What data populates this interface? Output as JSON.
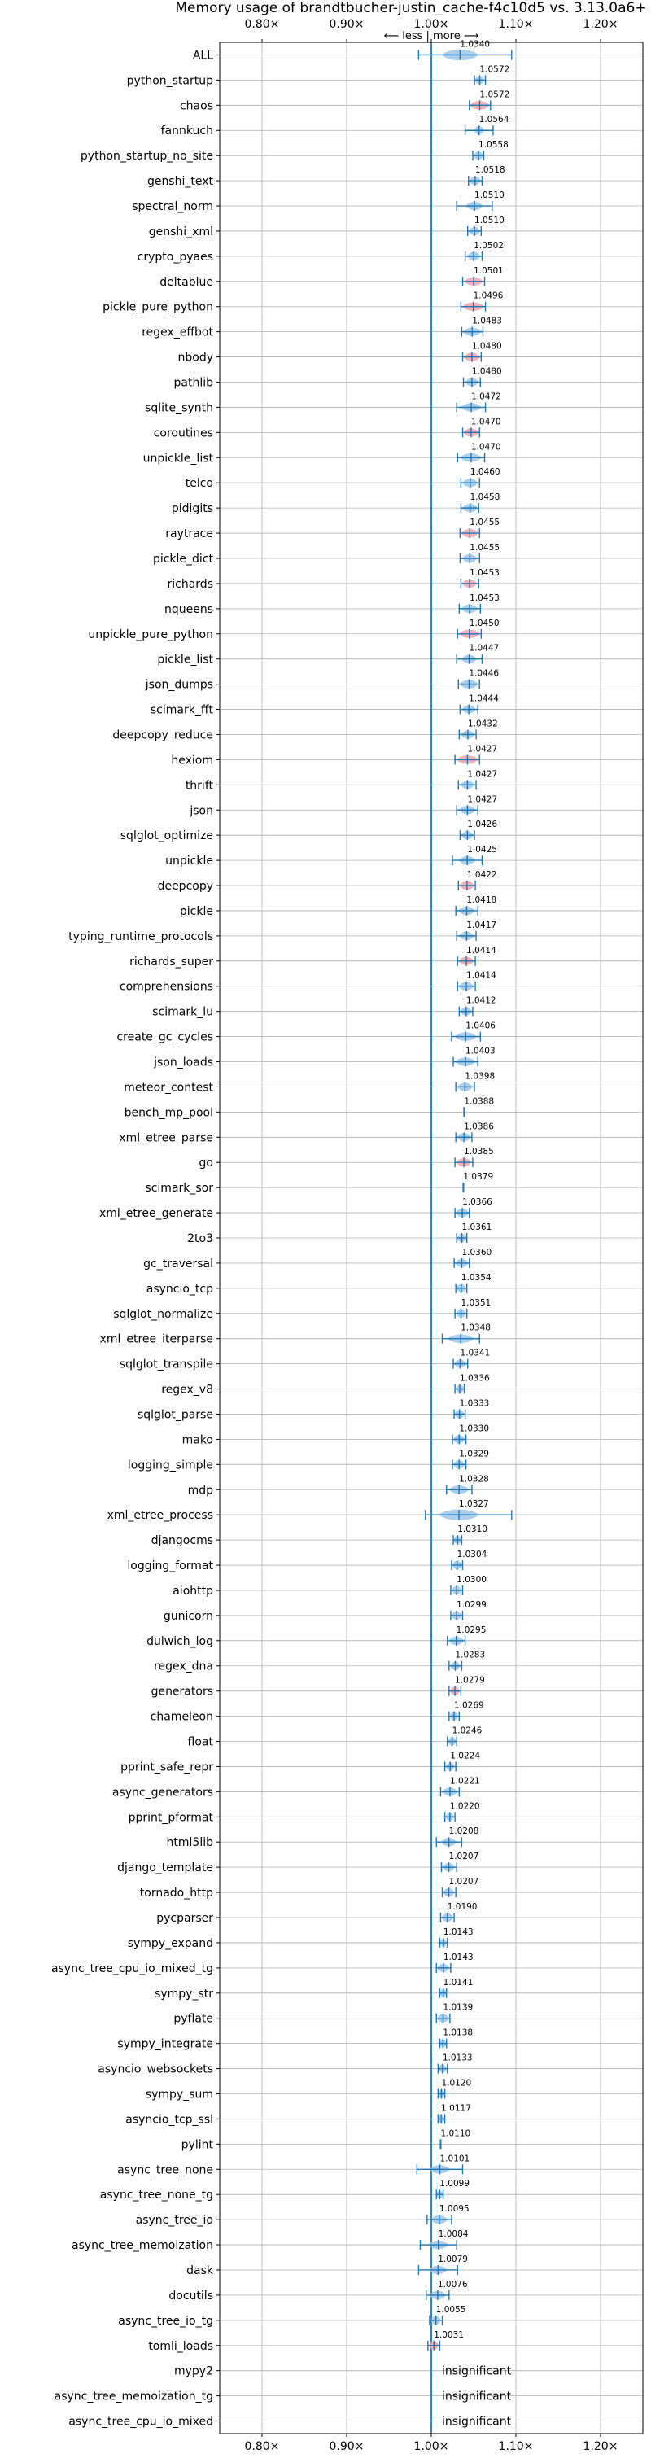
{
  "chart_data": {
    "type": "violin",
    "title": "Memory usage of brandtbucher-justin_cache-f4c10d5 vs. 3.13.0a6+",
    "direction_note": "⟵ less | more ⟶",
    "xlim": [
      0.75,
      1.25
    ],
    "x_ticks": [
      0.8,
      0.9,
      1.0,
      1.1,
      1.2
    ],
    "x_tick_labels": [
      "0.80×",
      "0.90×",
      "1.00×",
      "1.10×",
      "1.20×"
    ],
    "reference_line": 1.0,
    "grid": true,
    "colors": {
      "axis_line": "#1f77b4",
      "violin_normal": "#9ec6e8",
      "violin_highlight": "#f2a3ad",
      "errorbar": "#1f77b4",
      "grid": "#b0b0b0"
    },
    "insignificant_label": "insignificant",
    "benchmarks": [
      {
        "name": "ALL",
        "value": 1.034,
        "label": "1.0340",
        "lo": 0.985,
        "hi": 1.095,
        "spread": 0.022,
        "highlight": false,
        "wide": true
      },
      {
        "name": "python_startup",
        "value": 1.0572,
        "label": "1.0572",
        "lo": 1.051,
        "hi": 1.064,
        "spread": 0.006,
        "highlight": false
      },
      {
        "name": "chaos",
        "value": 1.0572,
        "label": "1.0572",
        "lo": 1.045,
        "hi": 1.07,
        "spread": 0.012,
        "highlight": true
      },
      {
        "name": "fannkuch",
        "value": 1.0564,
        "label": "1.0564",
        "lo": 1.04,
        "hi": 1.073,
        "spread": 0.006,
        "highlight": false
      },
      {
        "name": "python_startup_no_site",
        "value": 1.0558,
        "label": "1.0558",
        "lo": 1.049,
        "hi": 1.062,
        "spread": 0.006,
        "highlight": false
      },
      {
        "name": "genshi_text",
        "value": 1.0518,
        "label": "1.0518",
        "lo": 1.044,
        "hi": 1.06,
        "spread": 0.007,
        "highlight": false
      },
      {
        "name": "spectral_norm",
        "value": 1.051,
        "label": "1.0510",
        "lo": 1.03,
        "hi": 1.072,
        "spread": 0.01,
        "highlight": false
      },
      {
        "name": "genshi_xml",
        "value": 1.051,
        "label": "1.0510",
        "lo": 1.043,
        "hi": 1.059,
        "spread": 0.007,
        "highlight": false
      },
      {
        "name": "crypto_pyaes",
        "value": 1.0502,
        "label": "1.0502",
        "lo": 1.04,
        "hi": 1.06,
        "spread": 0.008,
        "highlight": false
      },
      {
        "name": "deltablue",
        "value": 1.0501,
        "label": "1.0501",
        "lo": 1.037,
        "hi": 1.063,
        "spread": 0.011,
        "highlight": true
      },
      {
        "name": "pickle_pure_python",
        "value": 1.0496,
        "label": "1.0496",
        "lo": 1.035,
        "hi": 1.064,
        "spread": 0.013,
        "highlight": true
      },
      {
        "name": "regex_effbot",
        "value": 1.0483,
        "label": "1.0483",
        "lo": 1.036,
        "hi": 1.061,
        "spread": 0.011,
        "highlight": false
      },
      {
        "name": "nbody",
        "value": 1.048,
        "label": "1.0480",
        "lo": 1.037,
        "hi": 1.059,
        "spread": 0.01,
        "highlight": true
      },
      {
        "name": "pathlib",
        "value": 1.048,
        "label": "1.0480",
        "lo": 1.038,
        "hi": 1.058,
        "spread": 0.008,
        "highlight": false
      },
      {
        "name": "sqlite_synth",
        "value": 1.0472,
        "label": "1.0472",
        "lo": 1.03,
        "hi": 1.064,
        "spread": 0.012,
        "highlight": false
      },
      {
        "name": "coroutines",
        "value": 1.047,
        "label": "1.0470",
        "lo": 1.037,
        "hi": 1.057,
        "spread": 0.009,
        "highlight": true
      },
      {
        "name": "unpickle_list",
        "value": 1.047,
        "label": "1.0470",
        "lo": 1.031,
        "hi": 1.063,
        "spread": 0.013,
        "highlight": false
      },
      {
        "name": "telco",
        "value": 1.046,
        "label": "1.0460",
        "lo": 1.035,
        "hi": 1.057,
        "spread": 0.009,
        "highlight": false
      },
      {
        "name": "pidigits",
        "value": 1.0458,
        "label": "1.0458",
        "lo": 1.035,
        "hi": 1.056,
        "spread": 0.009,
        "highlight": false
      },
      {
        "name": "raytrace",
        "value": 1.0455,
        "label": "1.0455",
        "lo": 1.034,
        "hi": 1.057,
        "spread": 0.01,
        "highlight": true
      },
      {
        "name": "pickle_dict",
        "value": 1.0455,
        "label": "1.0455",
        "lo": 1.034,
        "hi": 1.057,
        "spread": 0.009,
        "highlight": false
      },
      {
        "name": "richards",
        "value": 1.0453,
        "label": "1.0453",
        "lo": 1.035,
        "hi": 1.056,
        "spread": 0.009,
        "highlight": true
      },
      {
        "name": "nqueens",
        "value": 1.0453,
        "label": "1.0453",
        "lo": 1.033,
        "hi": 1.058,
        "spread": 0.01,
        "highlight": false
      },
      {
        "name": "unpickle_pure_python",
        "value": 1.045,
        "label": "1.0450",
        "lo": 1.031,
        "hi": 1.059,
        "spread": 0.012,
        "highlight": true
      },
      {
        "name": "pickle_list",
        "value": 1.0447,
        "label": "1.0447",
        "lo": 1.03,
        "hi": 1.06,
        "spread": 0.009,
        "highlight": false
      },
      {
        "name": "json_dumps",
        "value": 1.0446,
        "label": "1.0446",
        "lo": 1.032,
        "hi": 1.057,
        "spread": 0.011,
        "highlight": false
      },
      {
        "name": "scimark_fft",
        "value": 1.0444,
        "label": "1.0444",
        "lo": 1.034,
        "hi": 1.055,
        "spread": 0.008,
        "highlight": false
      },
      {
        "name": "deepcopy_reduce",
        "value": 1.0432,
        "label": "1.0432",
        "lo": 1.033,
        "hi": 1.053,
        "spread": 0.008,
        "highlight": false
      },
      {
        "name": "hexiom",
        "value": 1.0427,
        "label": "1.0427",
        "lo": 1.028,
        "hi": 1.057,
        "spread": 0.013,
        "highlight": true
      },
      {
        "name": "thrift",
        "value": 1.0427,
        "label": "1.0427",
        "lo": 1.032,
        "hi": 1.053,
        "spread": 0.008,
        "highlight": false
      },
      {
        "name": "json",
        "value": 1.0427,
        "label": "1.0427",
        "lo": 1.03,
        "hi": 1.055,
        "spread": 0.01,
        "highlight": false
      },
      {
        "name": "sqlglot_optimize",
        "value": 1.0426,
        "label": "1.0426",
        "lo": 1.034,
        "hi": 1.051,
        "spread": 0.007,
        "highlight": false
      },
      {
        "name": "unpickle",
        "value": 1.0425,
        "label": "1.0425",
        "lo": 1.025,
        "hi": 1.06,
        "spread": 0.01,
        "highlight": false
      },
      {
        "name": "deepcopy",
        "value": 1.0422,
        "label": "1.0422",
        "lo": 1.032,
        "hi": 1.052,
        "spread": 0.009,
        "highlight": true
      },
      {
        "name": "pickle",
        "value": 1.0418,
        "label": "1.0418",
        "lo": 1.029,
        "hi": 1.055,
        "spread": 0.01,
        "highlight": false
      },
      {
        "name": "typing_runtime_protocols",
        "value": 1.0417,
        "label": "1.0417",
        "lo": 1.03,
        "hi": 1.053,
        "spread": 0.009,
        "highlight": false
      },
      {
        "name": "richards_super",
        "value": 1.0414,
        "label": "1.0414",
        "lo": 1.031,
        "hi": 1.052,
        "spread": 0.009,
        "highlight": true
      },
      {
        "name": "comprehensions",
        "value": 1.0414,
        "label": "1.0414",
        "lo": 1.031,
        "hi": 1.052,
        "spread": 0.009,
        "highlight": false
      },
      {
        "name": "scimark_lu",
        "value": 1.0412,
        "label": "1.0412",
        "lo": 1.033,
        "hi": 1.049,
        "spread": 0.007,
        "highlight": false
      },
      {
        "name": "create_gc_cycles",
        "value": 1.0406,
        "label": "1.0406",
        "lo": 1.024,
        "hi": 1.058,
        "spread": 0.013,
        "highlight": false
      },
      {
        "name": "json_loads",
        "value": 1.0403,
        "label": "1.0403",
        "lo": 1.026,
        "hi": 1.055,
        "spread": 0.012,
        "highlight": false
      },
      {
        "name": "meteor_contest",
        "value": 1.0398,
        "label": "1.0398",
        "lo": 1.029,
        "hi": 1.051,
        "spread": 0.009,
        "highlight": false
      },
      {
        "name": "bench_mp_pool",
        "value": 1.0388,
        "label": "1.0388",
        "lo": 1.0385,
        "hi": 1.0391,
        "spread": 0.001,
        "highlight": false,
        "bare": true
      },
      {
        "name": "xml_etree_parse",
        "value": 1.0386,
        "label": "1.0386",
        "lo": 1.029,
        "hi": 1.048,
        "spread": 0.008,
        "highlight": false
      },
      {
        "name": "go",
        "value": 1.0385,
        "label": "1.0385",
        "lo": 1.028,
        "hi": 1.049,
        "spread": 0.009,
        "highlight": true
      },
      {
        "name": "scimark_sor",
        "value": 1.0379,
        "label": "1.0379",
        "lo": 1.0376,
        "hi": 1.0382,
        "spread": 0.001,
        "highlight": false,
        "bare": true
      },
      {
        "name": "xml_etree_generate",
        "value": 1.0366,
        "label": "1.0366",
        "lo": 1.028,
        "hi": 1.045,
        "spread": 0.008,
        "highlight": false
      },
      {
        "name": "2to3",
        "value": 1.0361,
        "label": "1.0361",
        "lo": 1.03,
        "hi": 1.042,
        "spread": 0.006,
        "highlight": false
      },
      {
        "name": "gc_traversal",
        "value": 1.036,
        "label": "1.0360",
        "lo": 1.027,
        "hi": 1.045,
        "spread": 0.008,
        "highlight": false
      },
      {
        "name": "asyncio_tcp",
        "value": 1.0354,
        "label": "1.0354",
        "lo": 1.029,
        "hi": 1.042,
        "spread": 0.006,
        "highlight": false
      },
      {
        "name": "sqlglot_normalize",
        "value": 1.0351,
        "label": "1.0351",
        "lo": 1.028,
        "hi": 1.042,
        "spread": 0.006,
        "highlight": false
      },
      {
        "name": "xml_etree_iterparse",
        "value": 1.0348,
        "label": "1.0348",
        "lo": 1.013,
        "hi": 1.057,
        "spread": 0.016,
        "highlight": false
      },
      {
        "name": "sqlglot_transpile",
        "value": 1.0341,
        "label": "1.0341",
        "lo": 1.026,
        "hi": 1.043,
        "spread": 0.007,
        "highlight": false
      },
      {
        "name": "regex_v8",
        "value": 1.0336,
        "label": "1.0336",
        "lo": 1.028,
        "hi": 1.039,
        "spread": 0.005,
        "highlight": false
      },
      {
        "name": "sqlglot_parse",
        "value": 1.0333,
        "label": "1.0333",
        "lo": 1.027,
        "hi": 1.04,
        "spread": 0.006,
        "highlight": false
      },
      {
        "name": "mako",
        "value": 1.033,
        "label": "1.0330",
        "lo": 1.025,
        "hi": 1.041,
        "spread": 0.007,
        "highlight": false
      },
      {
        "name": "logging_simple",
        "value": 1.0329,
        "label": "1.0329",
        "lo": 1.025,
        "hi": 1.041,
        "spread": 0.007,
        "highlight": false
      },
      {
        "name": "mdp",
        "value": 1.0328,
        "label": "1.0328",
        "lo": 1.018,
        "hi": 1.048,
        "spread": 0.012,
        "highlight": false
      },
      {
        "name": "xml_etree_process",
        "value": 1.0327,
        "label": "1.0327",
        "lo": 0.993,
        "hi": 1.095,
        "spread": 0.024,
        "highlight": false,
        "wide": true
      },
      {
        "name": "djangocms",
        "value": 1.031,
        "label": "1.0310",
        "lo": 1.026,
        "hi": 1.036,
        "spread": 0.005,
        "highlight": false
      },
      {
        "name": "logging_format",
        "value": 1.0304,
        "label": "1.0304",
        "lo": 1.024,
        "hi": 1.037,
        "spread": 0.006,
        "highlight": false
      },
      {
        "name": "aiohttp",
        "value": 1.03,
        "label": "1.0300",
        "lo": 1.023,
        "hi": 1.037,
        "spread": 0.006,
        "highlight": false
      },
      {
        "name": "gunicorn",
        "value": 1.0299,
        "label": "1.0299",
        "lo": 1.023,
        "hi": 1.037,
        "spread": 0.006,
        "highlight": false
      },
      {
        "name": "dulwich_log",
        "value": 1.0295,
        "label": "1.0295",
        "lo": 1.019,
        "hi": 1.04,
        "spread": 0.009,
        "highlight": false
      },
      {
        "name": "regex_dna",
        "value": 1.0283,
        "label": "1.0283",
        "lo": 1.021,
        "hi": 1.036,
        "spread": 0.006,
        "highlight": false
      },
      {
        "name": "generators",
        "value": 1.0279,
        "label": "1.0279",
        "lo": 1.021,
        "hi": 1.035,
        "spread": 0.006,
        "highlight": true
      },
      {
        "name": "chameleon",
        "value": 1.0269,
        "label": "1.0269",
        "lo": 1.021,
        "hi": 1.033,
        "spread": 0.005,
        "highlight": false
      },
      {
        "name": "float",
        "value": 1.0246,
        "label": "1.0246",
        "lo": 1.019,
        "hi": 1.03,
        "spread": 0.005,
        "highlight": false
      },
      {
        "name": "pprint_safe_repr",
        "value": 1.0224,
        "label": "1.0224",
        "lo": 1.016,
        "hi": 1.029,
        "spread": 0.005,
        "highlight": false
      },
      {
        "name": "async_generators",
        "value": 1.0221,
        "label": "1.0221",
        "lo": 1.011,
        "hi": 1.033,
        "spread": 0.009,
        "highlight": false
      },
      {
        "name": "pprint_pformat",
        "value": 1.022,
        "label": "1.0220",
        "lo": 1.016,
        "hi": 1.028,
        "spread": 0.005,
        "highlight": false
      },
      {
        "name": "html5lib",
        "value": 1.0208,
        "label": "1.0208",
        "lo": 1.006,
        "hi": 1.036,
        "spread": 0.009,
        "highlight": false
      },
      {
        "name": "django_template",
        "value": 1.0207,
        "label": "1.0207",
        "lo": 1.012,
        "hi": 1.03,
        "spread": 0.007,
        "highlight": false
      },
      {
        "name": "tornado_http",
        "value": 1.0207,
        "label": "1.0207",
        "lo": 1.013,
        "hi": 1.029,
        "spread": 0.007,
        "highlight": false
      },
      {
        "name": "pycparser",
        "value": 1.019,
        "label": "1.0190",
        "lo": 1.011,
        "hi": 1.027,
        "spread": 0.007,
        "highlight": false
      },
      {
        "name": "sympy_expand",
        "value": 1.0143,
        "label": "1.0143",
        "lo": 1.01,
        "hi": 1.019,
        "spread": 0.004,
        "highlight": false
      },
      {
        "name": "async_tree_cpu_io_mixed_tg",
        "value": 1.0143,
        "label": "1.0143",
        "lo": 1.006,
        "hi": 1.023,
        "spread": 0.007,
        "highlight": false
      },
      {
        "name": "sympy_str",
        "value": 1.0141,
        "label": "1.0141",
        "lo": 1.01,
        "hi": 1.018,
        "spread": 0.004,
        "highlight": false
      },
      {
        "name": "pyflate",
        "value": 1.0139,
        "label": "1.0139",
        "lo": 1.006,
        "hi": 1.022,
        "spread": 0.007,
        "highlight": false
      },
      {
        "name": "sympy_integrate",
        "value": 1.0138,
        "label": "1.0138",
        "lo": 1.01,
        "hi": 1.018,
        "spread": 0.004,
        "highlight": false
      },
      {
        "name": "asyncio_websockets",
        "value": 1.0133,
        "label": "1.0133",
        "lo": 1.008,
        "hi": 1.019,
        "spread": 0.005,
        "highlight": false
      },
      {
        "name": "sympy_sum",
        "value": 1.012,
        "label": "1.0120",
        "lo": 1.008,
        "hi": 1.016,
        "spread": 0.004,
        "highlight": false
      },
      {
        "name": "asyncio_tcp_ssl",
        "value": 1.0117,
        "label": "1.0117",
        "lo": 1.008,
        "hi": 1.016,
        "spread": 0.004,
        "highlight": false
      },
      {
        "name": "pylint",
        "value": 1.011,
        "label": "1.0110",
        "lo": 1.0107,
        "hi": 1.0113,
        "spread": 0.001,
        "highlight": false,
        "bare": true
      },
      {
        "name": "async_tree_none",
        "value": 1.0101,
        "label": "1.0101",
        "lo": 0.983,
        "hi": 1.037,
        "spread": 0.012,
        "highlight": false
      },
      {
        "name": "async_tree_none_tg",
        "value": 1.0099,
        "label": "1.0099",
        "lo": 1.006,
        "hi": 1.014,
        "spread": 0.004,
        "highlight": false
      },
      {
        "name": "async_tree_io",
        "value": 1.0095,
        "label": "1.0095",
        "lo": 0.995,
        "hi": 1.024,
        "spread": 0.01,
        "highlight": false
      },
      {
        "name": "async_tree_memoization",
        "value": 1.0084,
        "label": "1.0084",
        "lo": 0.987,
        "hi": 1.03,
        "spread": 0.012,
        "highlight": false
      },
      {
        "name": "dask",
        "value": 1.0079,
        "label": "1.0079",
        "lo": 0.985,
        "hi": 1.031,
        "spread": 0.011,
        "highlight": false
      },
      {
        "name": "docutils",
        "value": 1.0076,
        "label": "1.0076",
        "lo": 0.994,
        "hi": 1.021,
        "spread": 0.01,
        "highlight": false
      },
      {
        "name": "async_tree_io_tg",
        "value": 1.0055,
        "label": "1.0055",
        "lo": 0.998,
        "hi": 1.013,
        "spread": 0.006,
        "highlight": false
      },
      {
        "name": "tomli_loads",
        "value": 1.0031,
        "label": "1.0031",
        "lo": 0.996,
        "hi": 1.01,
        "spread": 0.006,
        "highlight": true
      },
      {
        "name": "mypy2",
        "value": null,
        "label": "",
        "insignificant": true
      },
      {
        "name": "async_tree_memoization_tg",
        "value": null,
        "label": "",
        "insignificant": true
      },
      {
        "name": "async_tree_cpu_io_mixed",
        "value": null,
        "label": "",
        "insignificant": true
      }
    ]
  }
}
